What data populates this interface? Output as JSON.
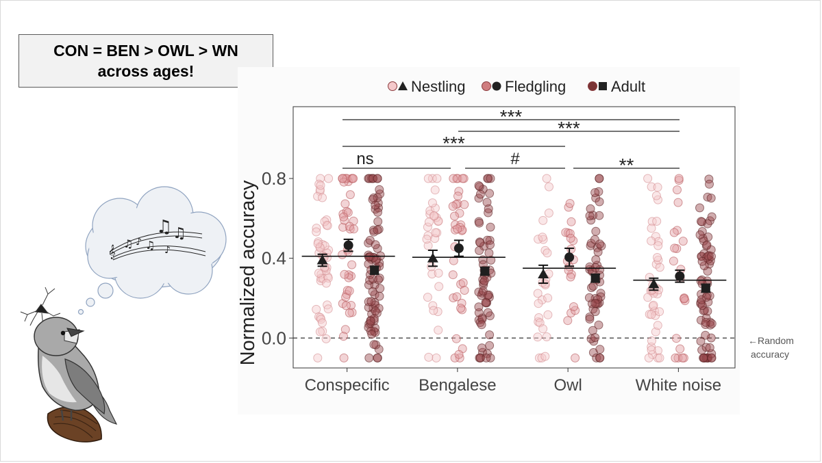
{
  "headline": {
    "line1": "CON = BEN > OWL > WN",
    "line2": "across ages!"
  },
  "random_note": {
    "arrow": "←",
    "line1": "Random",
    "line2": "accuracy"
  },
  "chart_data": {
    "type": "scatter",
    "subtype": "jittered strip plot with group means ± error bars",
    "ylabel": "Normalized accuracy",
    "xlabel": "",
    "ylim": [
      -0.15,
      1.16
    ],
    "yticks": [
      0.0,
      0.4,
      0.8
    ],
    "categories": [
      "Conspecific",
      "Bengalese",
      "Owl",
      "White noise"
    ],
    "legend": {
      "placement": "top",
      "entries": [
        {
          "label": "Nestling",
          "marker": "triangle",
          "fill": "#f4c9cb"
        },
        {
          "label": "Fledgling",
          "marker": "circle",
          "fill": "#cf7d7f"
        },
        {
          "label": "Adult",
          "marker": "square",
          "fill": "#7a3435"
        }
      ]
    },
    "series": [
      {
        "name": "Nestling",
        "marker": "triangle",
        "dot_fill": "#f4c9cb",
        "dot_stroke": "#d48e91",
        "means": [
          0.39,
          0.4,
          0.32,
          0.27
        ],
        "errors": [
          0.03,
          0.04,
          0.045,
          0.03
        ],
        "n_points": [
          50,
          32,
          28,
          44
        ]
      },
      {
        "name": "Fledgling",
        "marker": "circle",
        "dot_fill": "#e3a0a3",
        "dot_stroke": "#b8585c",
        "means": [
          0.465,
          0.45,
          0.405,
          0.31
        ],
        "errors": [
          0.03,
          0.04,
          0.045,
          0.03
        ],
        "n_points": [
          42,
          36,
          20,
          22
        ]
      },
      {
        "name": "Adult",
        "marker": "square",
        "dot_fill": "#9a4a4d",
        "dot_stroke": "#5e2527",
        "means": [
          0.34,
          0.335,
          0.3,
          0.25
        ],
        "errors": [
          0.02,
          0.02,
          0.02,
          0.02
        ],
        "n_points": [
          80,
          64,
          56,
          72
        ]
      }
    ],
    "category_means": [
      0.41,
      0.405,
      0.35,
      0.29
    ],
    "reference_line": {
      "y": 0.0,
      "style": "dashed"
    },
    "significance": [
      {
        "from": "Conspecific",
        "to": "White noise",
        "label": "***"
      },
      {
        "from": "Bengalese",
        "to": "White noise",
        "label": "***"
      },
      {
        "from": "Conspecific",
        "to": "Owl",
        "label": "***"
      },
      {
        "from": "Conspecific",
        "to": "Bengalese",
        "label": "ns"
      },
      {
        "from": "Bengalese",
        "to": "Owl",
        "label": "#"
      },
      {
        "from": "Owl",
        "to": "White noise",
        "label": "**"
      }
    ],
    "grid": false
  }
}
